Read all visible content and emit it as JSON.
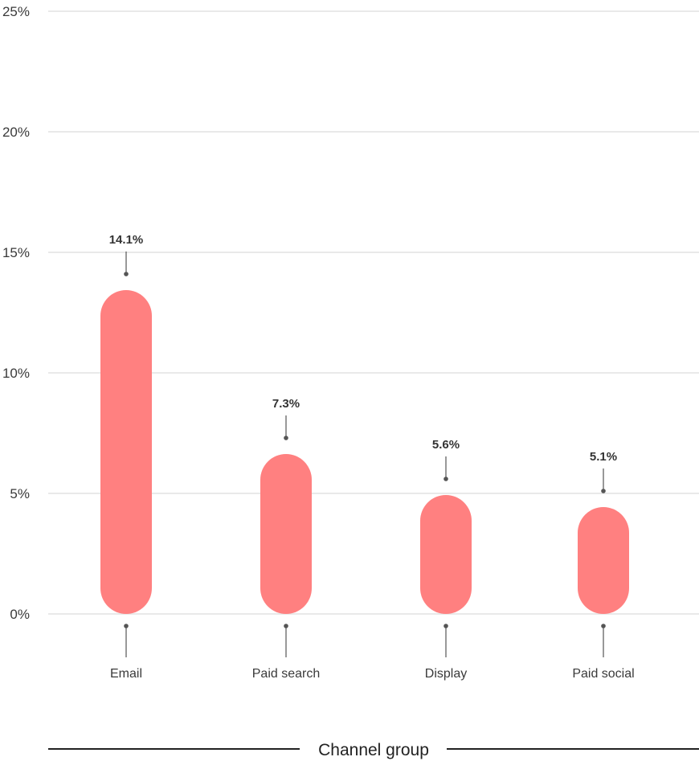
{
  "chart_data": {
    "type": "bar",
    "categories": [
      "Email",
      "Paid search",
      "Display",
      "Paid social"
    ],
    "values": [
      14.1,
      7.3,
      5.6,
      5.1
    ],
    "value_labels": [
      "14.1%",
      "7.3%",
      "5.6%",
      "5.1%"
    ],
    "title": "",
    "xlabel": "Channel group",
    "ylabel": "",
    "ylim": [
      0,
      25
    ],
    "yticks": [
      0,
      5,
      10,
      15,
      20,
      25
    ],
    "ytick_labels": [
      "0%",
      "5%",
      "10%",
      "15%",
      "20%",
      "25%"
    ],
    "grid": true,
    "legend": "none",
    "bar_color": "#ff8080"
  }
}
